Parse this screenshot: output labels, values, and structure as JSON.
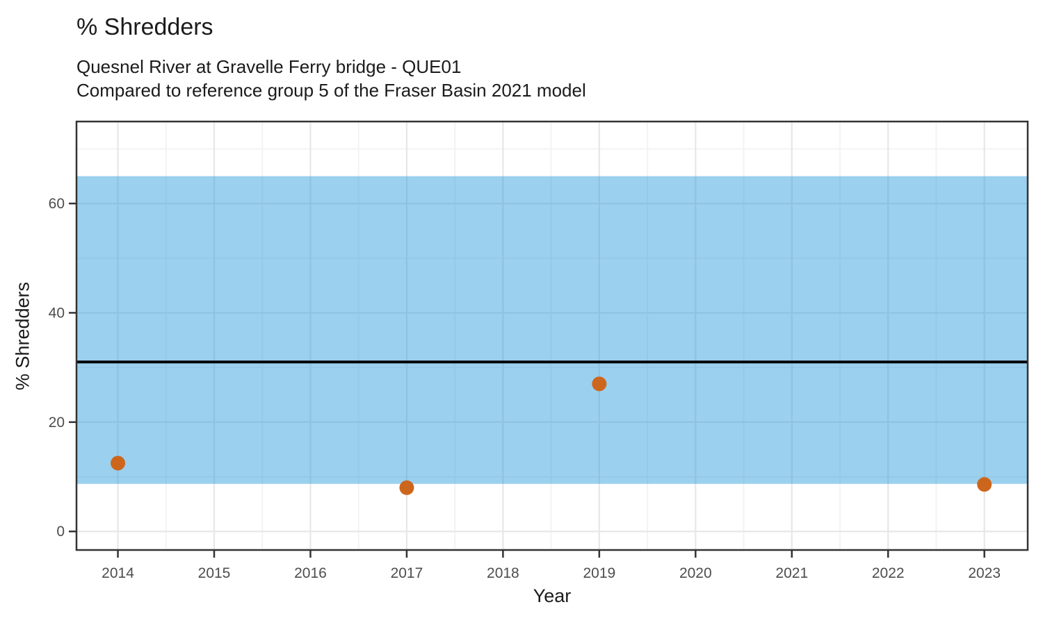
{
  "chart_data": {
    "type": "scatter",
    "title": "% Shredders",
    "subtitle_line1": "Quesnel River at Gravelle Ferry bridge - QUE01",
    "subtitle_line2": "Compared to reference group 5 of the Fraser Basin 2021 model",
    "xlabel": "Year",
    "ylabel": "% Shredders",
    "xlim": [
      2013.57,
      2023.45
    ],
    "ylim": [
      -3.4,
      75.0
    ],
    "x_ticks": [
      2014,
      2015,
      2016,
      2017,
      2018,
      2019,
      2020,
      2021,
      2022,
      2023
    ],
    "y_ticks": [
      0,
      20,
      40,
      60
    ],
    "x_minor": [
      2014.5,
      2015.5,
      2016.5,
      2017.5,
      2018.5,
      2019.5,
      2020.5,
      2021.5,
      2022.5
    ],
    "y_minor": [
      10,
      30,
      50,
      70
    ],
    "grid": true,
    "legend_position": "none",
    "reference_band": {
      "label": "reference-group-range",
      "low": 8.7,
      "high": 65.0,
      "color": "#2197DA",
      "opacity": 0.45
    },
    "reference_line": {
      "label": "reference-group-mean",
      "value": 31,
      "color": "#000000",
      "width": 4
    },
    "series": [
      {
        "name": "observed",
        "marker": "circle",
        "marker_radius": 10.5,
        "color": "#CD661D",
        "points": [
          {
            "x": 2014,
            "y": 12.5
          },
          {
            "x": 2017,
            "y": 8.0
          },
          {
            "x": 2019,
            "y": 27.0
          },
          {
            "x": 2023,
            "y": 8.6
          }
        ]
      }
    ]
  },
  "style": {
    "background": "#FFFFFF",
    "panel_background": "#FFFFFF",
    "panel_border_color": "#333333",
    "panel_border_width": 2.5,
    "grid_major_color": "#E7E7E7",
    "grid_major_width": 2.2,
    "grid_minor_color": "#F3F3F3",
    "grid_minor_width": 2,
    "tick_color": "#333333",
    "tick_length": 9,
    "tick_width": 2.5,
    "tick_label_color": "#4D4D4D",
    "title_color": "#1B1B1B"
  }
}
